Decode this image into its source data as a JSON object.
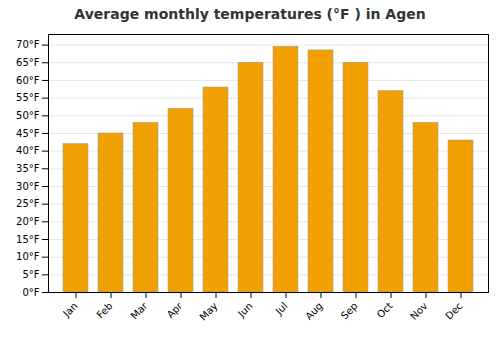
{
  "chart_data": {
    "type": "bar",
    "title": "Average monthly temperatures (°F ) in Agen",
    "categories": [
      "Jan",
      "Feb",
      "Mar",
      "Apr",
      "May",
      "Jun",
      "Jul",
      "Aug",
      "Sep",
      "Oct",
      "Nov",
      "Dec"
    ],
    "values": [
      42,
      45,
      48,
      52,
      58,
      65,
      69.5,
      68.5,
      65,
      57,
      48,
      43
    ],
    "color": "#F0A000",
    "ylim": [
      0,
      73
    ],
    "yticks": [
      {
        "value": 0,
        "label": "0°F"
      },
      {
        "value": 5,
        "label": "5°F"
      },
      {
        "value": 10,
        "label": "10°F"
      },
      {
        "value": 15,
        "label": "15°F"
      },
      {
        "value": 20,
        "label": "20°F"
      },
      {
        "value": 25,
        "label": "25°F"
      },
      {
        "value": 30,
        "label": "30°F"
      },
      {
        "value": 35,
        "label": "35°F"
      },
      {
        "value": 40,
        "label": "40°F"
      },
      {
        "value": 45,
        "label": "45°F"
      },
      {
        "value": 50,
        "label": "50°F"
      },
      {
        "value": 55,
        "label": "55°F"
      },
      {
        "value": 60,
        "label": "60°F"
      },
      {
        "value": 65,
        "label": "65°F"
      },
      {
        "value": 70,
        "label": "70°F"
      }
    ],
    "grid": true
  }
}
